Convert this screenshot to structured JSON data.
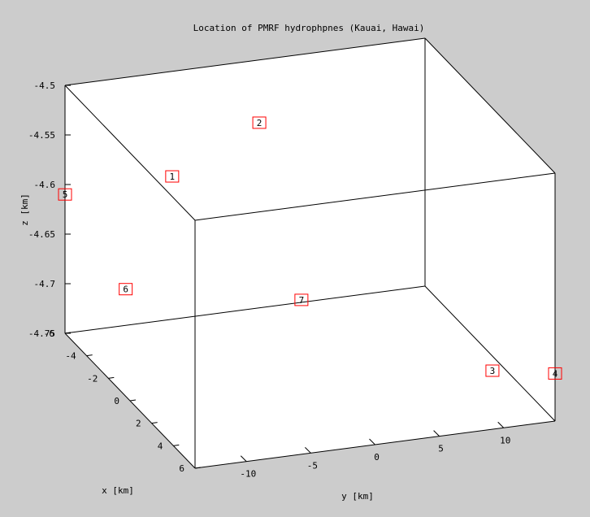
{
  "chart_data": {
    "type": "scatter",
    "title": "Location of PMRF hydrophpnes (Kauai, Hawai)",
    "xlabel": "x [km]",
    "ylabel": "y [km]",
    "zlabel": "z [km]",
    "xlim": [
      -6,
      6
    ],
    "ylim": [
      -14,
      14
    ],
    "zlim": [
      -4.75,
      -4.5
    ],
    "xticks": [
      "-6",
      "-4",
      "-2",
      "0",
      "2",
      "4",
      "6"
    ],
    "yticks": [
      "-10",
      "-5",
      "0",
      "5",
      "10"
    ],
    "zticks": [
      "-4.5",
      "-4.55",
      "-4.6",
      "-4.65",
      "-4.7",
      "-4.75"
    ],
    "grid": false,
    "marker": "square",
    "marker_color": "#ff0000",
    "points": [
      {
        "label": "1",
        "x": -2.4,
        "y": -8.7,
        "z": -4.56
      },
      {
        "label": "2",
        "x": -4.8,
        "y": 0.1,
        "z": -4.548
      },
      {
        "label": "3",
        "x": 2.0,
        "y": 12.5,
        "z": -4.742
      },
      {
        "label": "4",
        "x": 6.0,
        "y": 14.0,
        "z": -4.702
      },
      {
        "label": "5",
        "x": -6.0,
        "y": -14.0,
        "z": -4.61
      },
      {
        "label": "6",
        "x": -0.4,
        "y": -14.0,
        "z": -4.642
      },
      {
        "label": "7",
        "x": -4.0,
        "y": 2.7,
        "z": -4.722
      }
    ]
  }
}
